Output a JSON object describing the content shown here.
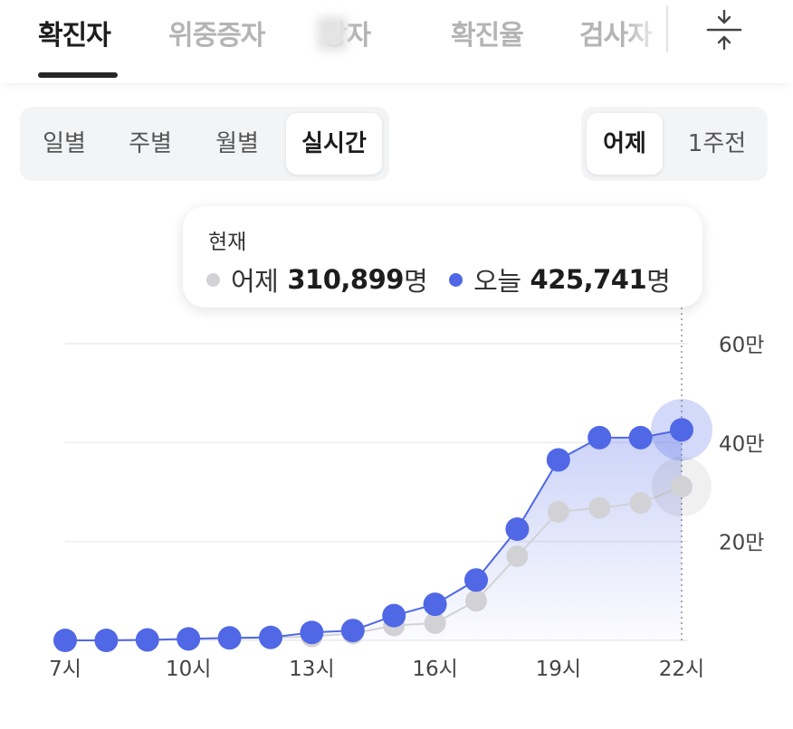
{
  "tabs": [
    {
      "label": "확진자",
      "active": true
    },
    {
      "label": "위중증자",
      "active": false
    },
    {
      "label": "망자",
      "active": false
    },
    {
      "label": "확진율",
      "active": false
    },
    {
      "label": "검사자",
      "active": false
    }
  ],
  "period_tabs": [
    "일별",
    "주별",
    "월별",
    "실시간"
  ],
  "period_selected": "실시간",
  "compare_tabs": [
    "어제",
    "1주전"
  ],
  "compare_selected": "어제",
  "tooltip": {
    "title": "현재",
    "yesterday_label": "어제",
    "yesterday_value": "310,899",
    "today_label": "오늘",
    "today_value": "425,741",
    "unit": "명"
  },
  "colors": {
    "today": "#5068e6",
    "yesterday": "#d2d2d6",
    "grid": "#ececec"
  },
  "chart_data": {
    "type": "line",
    "x": [
      "7시",
      "8시",
      "9시",
      "10시",
      "11시",
      "12시",
      "13시",
      "14시",
      "15시",
      "16시",
      "17시",
      "18시",
      "19시",
      "20시",
      "21시",
      "22시"
    ],
    "x_tick_labels": [
      "7시",
      "10시",
      "13시",
      "16시",
      "19시",
      "22시"
    ],
    "y_tick_labels": [
      "20만",
      "40만",
      "60만"
    ],
    "y_ticks": [
      200000,
      400000,
      600000
    ],
    "ylim": [
      0,
      600000
    ],
    "y_axis_side": "right",
    "grid": true,
    "series": [
      {
        "name": "어제",
        "values": [
          0,
          0,
          1000,
          2000,
          4000,
          5000,
          8000,
          14000,
          30000,
          35000,
          80000,
          170000,
          260000,
          268000,
          278000,
          310899
        ]
      },
      {
        "name": "오늘",
        "values": [
          0,
          0,
          1000,
          3000,
          5000,
          6000,
          16000,
          20000,
          50000,
          73000,
          122000,
          225000,
          365000,
          410000,
          410000,
          425741
        ]
      }
    ]
  }
}
